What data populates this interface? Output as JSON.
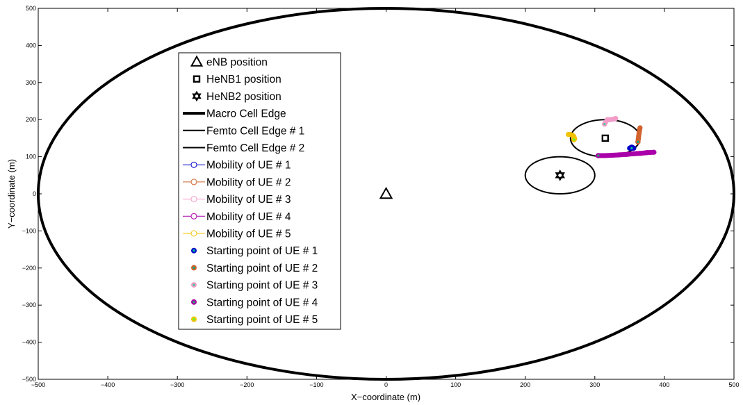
{
  "chart_data": {
    "type": "scatter",
    "xlabel": "X−coordinate (m)",
    "ylabel": "Y−coordinate (m)",
    "xlim": [
      -500,
      500
    ],
    "ylim": [
      -500,
      500
    ],
    "xticks": [
      -500,
      -400,
      -300,
      -200,
      -100,
      0,
      100,
      200,
      300,
      400,
      500
    ],
    "yticks": [
      -500,
      -400,
      -300,
      -200,
      -100,
      0,
      100,
      200,
      300,
      400,
      500
    ],
    "xtick_labels": [
      "−500",
      "−400",
      "−300",
      "−200",
      "−100",
      "0",
      "100",
      "200",
      "300",
      "400",
      "500"
    ],
    "ytick_labels": [
      "−500",
      "−400",
      "−300",
      "−200",
      "−100",
      "0",
      "100",
      "200",
      "300",
      "400",
      "500"
    ],
    "grid": false,
    "legend_position": "center-left",
    "positions": [
      {
        "name": "eNB position",
        "marker": "triangle",
        "x": 0,
        "y": 0
      },
      {
        "name": "HeNB1 position",
        "marker": "square",
        "x": 315,
        "y": 150
      },
      {
        "name": "HeNB2 position",
        "marker": "hexagram",
        "x": 250,
        "y": 50
      }
    ],
    "cells": [
      {
        "name": "Macro Cell Edge",
        "cx": 0,
        "cy": 0,
        "r": 500,
        "weight": "thick"
      },
      {
        "name": "Femto Cell Edge # 1",
        "cx": 315,
        "cy": 150,
        "r": 50,
        "weight": "normal"
      },
      {
        "name": "Femto Cell Edge # 2",
        "cx": 250,
        "cy": 50,
        "r": 50,
        "weight": "normal"
      }
    ],
    "series": [
      {
        "name": "Mobility of UE # 1",
        "color": "#0000cc",
        "x": [
          350,
          351,
          352,
          353,
          354,
          355,
          356
        ],
        "y": [
          123,
          124,
          125,
          126,
          125,
          124,
          123
        ],
        "start": {
          "name": "Starting point of UE # 1",
          "x": 353,
          "y": 123
        }
      },
      {
        "name": "Mobility of UE # 2",
        "color": "#d2622d",
        "x": [
          362,
          362.5,
          363,
          363.5,
          364,
          364.5,
          365
        ],
        "y": [
          140,
          148,
          155,
          162,
          168,
          174,
          178
        ],
        "start": {
          "name": "Starting point of UE # 2",
          "x": 362,
          "y": 140
        }
      },
      {
        "name": "Mobility of UE # 3",
        "color": "#f29cc8",
        "x": [
          314,
          318,
          322,
          326,
          330
        ],
        "y": [
          188,
          200,
          200,
          201,
          203
        ],
        "start": {
          "name": "Starting point of UE # 3",
          "x": 314,
          "y": 188
        }
      },
      {
        "name": "Mobility of UE # 4",
        "color": "#aa00aa",
        "x": [
          305,
          315,
          325,
          335,
          345,
          355,
          365,
          375,
          385
        ],
        "y": [
          103,
          103,
          104,
          105,
          106,
          108,
          109,
          111,
          112
        ],
        "start": {
          "name": "Starting point of UE # 4",
          "x": 305,
          "y": 103
        }
      },
      {
        "name": "Mobility of UE # 5",
        "color": "#f2c200",
        "x": [
          262,
          264,
          266,
          268,
          270,
          271
        ],
        "y": [
          160,
          160,
          159,
          158,
          154,
          148
        ],
        "start": {
          "name": "Starting point of UE # 5",
          "x": 270,
          "y": 146
        }
      }
    ],
    "start_fill_colors": [
      "#0000cc",
      "#d2622d",
      "#f29cc8",
      "#aa00aa",
      "#f2c200"
    ],
    "start_dot_colors": [
      "#00cc99",
      "#00aa88",
      "#44cc99",
      "#22aa66",
      "#66ff22"
    ],
    "legend": [
      "eNB position",
      "HeNB1 position",
      "HeNB2 position",
      "Macro Cell Edge",
      "Femto Cell Edge # 1",
      "Femto Cell Edge # 2",
      "Mobility of UE # 1",
      "Mobility of UE # 2",
      "Mobility of UE # 3",
      "Mobility of UE # 4",
      "Mobility of UE # 5",
      "Starting point of UE # 1",
      "Starting point of UE # 2",
      "Starting point of UE # 3",
      "Starting point of UE # 4",
      "Starting point of UE # 5"
    ]
  }
}
